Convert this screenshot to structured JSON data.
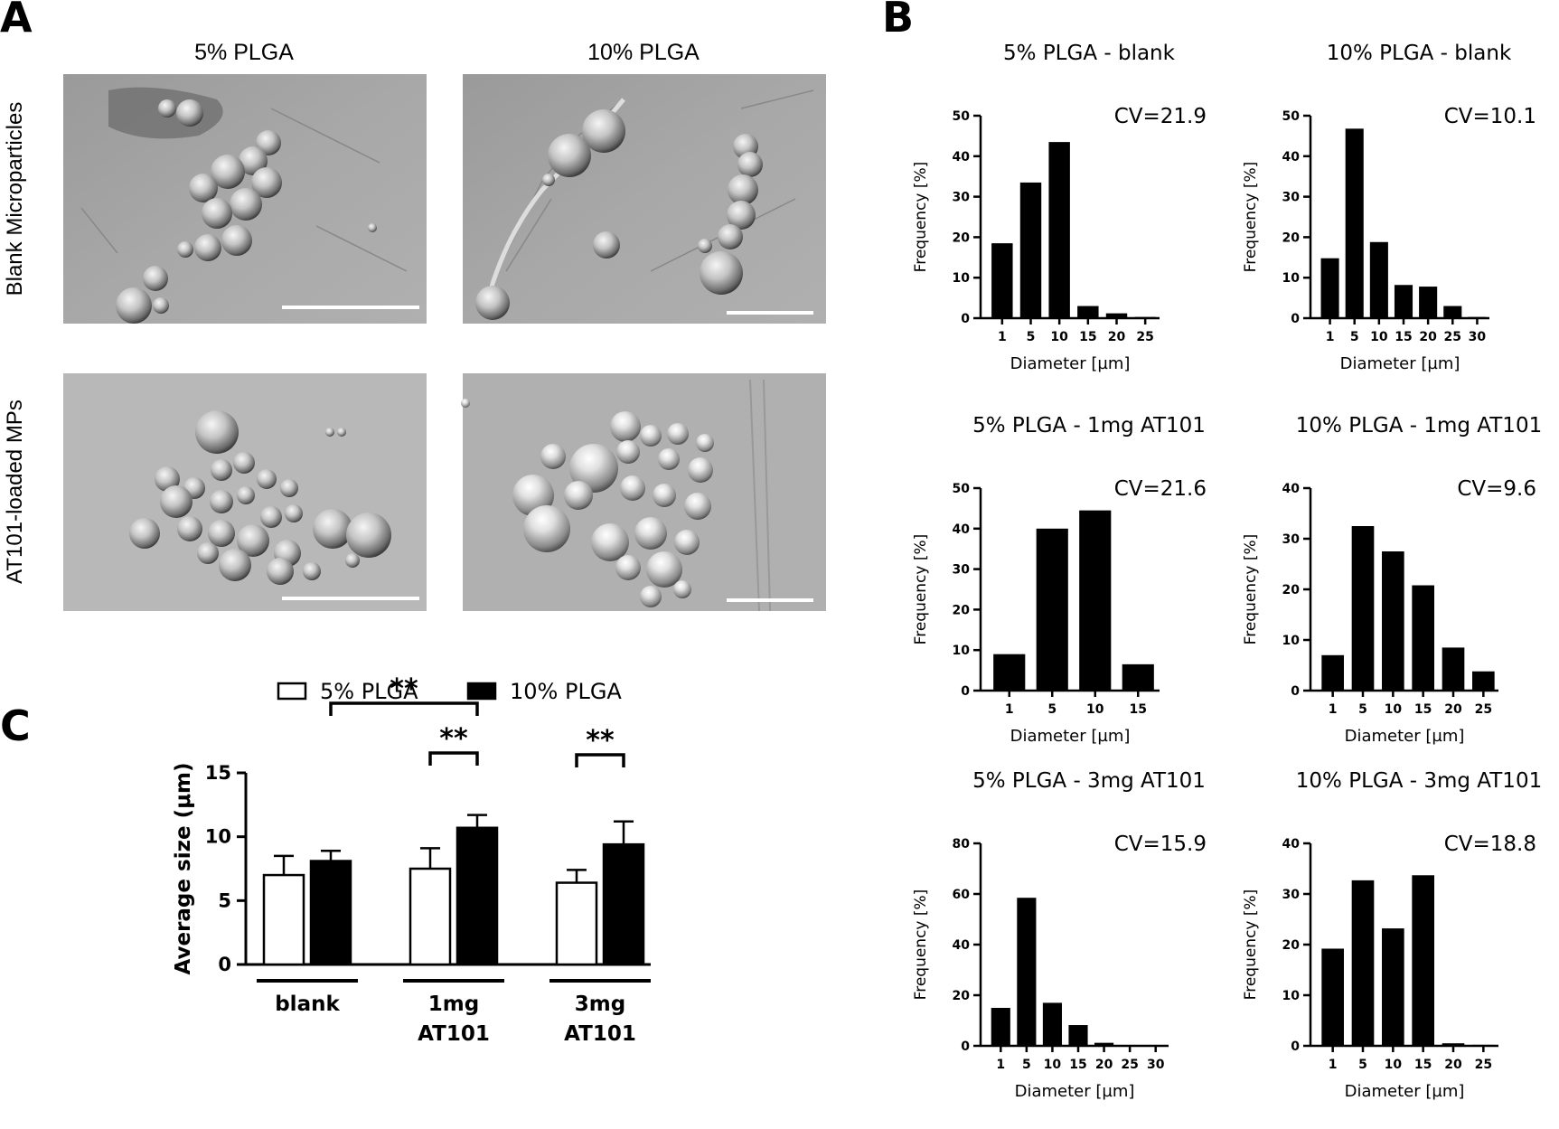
{
  "panels": {
    "a": "A",
    "b": "B",
    "c": "C"
  },
  "panel_a": {
    "col_titles": [
      "5% PLGA",
      "10% PLGA"
    ],
    "row_titles": [
      "Blank Microparticles",
      "AT101-loaded MPs"
    ]
  },
  "chart_data": [
    {
      "id": "c",
      "type": "bar",
      "categories": [
        "blank",
        "1mg AT101",
        "3mg AT101"
      ],
      "category_lines": [
        [
          "blank"
        ],
        [
          "1mg",
          "AT101"
        ],
        [
          "3mg",
          "AT101"
        ]
      ],
      "series": [
        {
          "name": "5% PLGA",
          "values": [
            7.0,
            7.5,
            6.4
          ],
          "errors": [
            1.5,
            1.6,
            1.0
          ],
          "color": "#ffffff"
        },
        {
          "name": "10% PLGA",
          "values": [
            8.1,
            10.7,
            9.4
          ],
          "errors": [
            0.8,
            1.0,
            1.8
          ],
          "color": "#000000"
        }
      ],
      "ylabel": "Average size (μm)",
      "ylim": [
        0,
        15
      ],
      "yticks": [
        0,
        5,
        10,
        15
      ],
      "significance": [
        {
          "from": "blank|10% PLGA",
          "to": "1mg AT101|10% PLGA",
          "label": "**"
        },
        {
          "from": "1mg AT101|5% PLGA",
          "to": "1mg AT101|10% PLGA",
          "label": "**"
        },
        {
          "from": "3mg AT101|5% PLGA",
          "to": "3mg AT101|10% PLGA",
          "label": "**"
        }
      ],
      "legend": "top"
    },
    {
      "id": "b1",
      "type": "bar",
      "title": "5% PLGA - blank",
      "annotation": "CV=21.9",
      "categories": [
        "1",
        "5",
        "10",
        "15",
        "20",
        "25"
      ],
      "values": [
        18.5,
        33.5,
        43.5,
        3,
        1.2,
        0.3
      ],
      "xlabel": "Diameter [µm]",
      "ylabel": "Frequency [%]",
      "ylim": [
        0,
        50
      ],
      "yticks": [
        0,
        10,
        20,
        30,
        40,
        50
      ]
    },
    {
      "id": "b2",
      "type": "bar",
      "title": "10% PLGA - blank",
      "annotation": "CV=10.1",
      "categories": [
        "1",
        "5",
        "10",
        "15",
        "20",
        "25",
        "30"
      ],
      "values": [
        14.8,
        46.8,
        18.8,
        8.2,
        7.8,
        3,
        0.3
      ],
      "xlabel": "Diameter [µm]",
      "ylabel": "Frequency [%]",
      "ylim": [
        0,
        50
      ],
      "yticks": [
        0,
        10,
        20,
        30,
        40,
        50
      ]
    },
    {
      "id": "b3",
      "type": "bar",
      "title": "5% PLGA - 1mg AT101",
      "annotation": "CV=21.6",
      "categories": [
        "1",
        "5",
        "10",
        "15"
      ],
      "values": [
        9,
        40,
        44.5,
        6.5
      ],
      "xlabel": "Diameter [µm]",
      "ylabel": "Frequency [%]",
      "ylim": [
        0,
        50
      ],
      "yticks": [
        0,
        10,
        20,
        30,
        40,
        50
      ]
    },
    {
      "id": "b4",
      "type": "bar",
      "title": "10% PLGA - 1mg AT101",
      "annotation": "CV=9.6",
      "categories": [
        "1",
        "5",
        "10",
        "15",
        "20",
        "25"
      ],
      "values": [
        7,
        32.5,
        27.5,
        20.8,
        8.5,
        3.8
      ],
      "xlabel": "Diameter [µm]",
      "ylabel": "Frequency [%]",
      "ylim": [
        0,
        40
      ],
      "yticks": [
        0,
        10,
        20,
        30,
        40
      ]
    },
    {
      "id": "b5",
      "type": "bar",
      "title": "5% PLGA - 3mg AT101",
      "annotation": "CV=15.9",
      "categories": [
        "1",
        "5",
        "10",
        "15",
        "20",
        "25",
        "30"
      ],
      "values": [
        15,
        58.5,
        17,
        8.2,
        1.2,
        0.3,
        0.3
      ],
      "xlabel": "Diameter [µm]",
      "ylabel": "Frequency [%]",
      "ylim": [
        0,
        80
      ],
      "yticks": [
        0,
        20,
        40,
        60,
        80
      ]
    },
    {
      "id": "b6",
      "type": "bar",
      "title": "10% PLGA - 3mg AT101",
      "annotation": "CV=18.8",
      "categories": [
        "1",
        "5",
        "10",
        "15",
        "20",
        "25"
      ],
      "values": [
        19.2,
        32.7,
        23.2,
        33.7,
        0.5,
        0.2
      ],
      "xlabel": "Diameter [µm]",
      "ylabel": "Frequency [%]",
      "ylim": [
        0,
        40
      ],
      "yticks": [
        0,
        10,
        20,
        30,
        40
      ]
    }
  ]
}
